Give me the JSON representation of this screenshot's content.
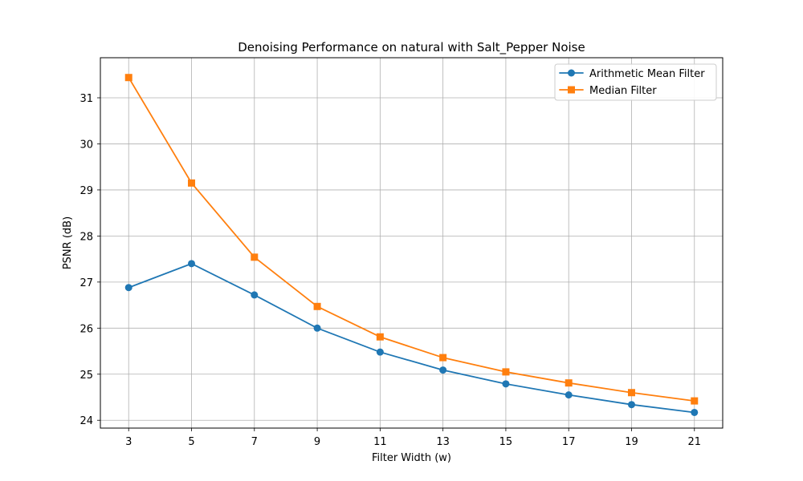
{
  "chart_data": {
    "type": "line",
    "title": "Denoising Performance on natural with Salt_Pepper Noise",
    "xlabel": "Filter Width (w)",
    "ylabel": "PSNR (dB)",
    "x": [
      3,
      5,
      7,
      9,
      11,
      13,
      15,
      17,
      19,
      21
    ],
    "xlim": [
      2.1,
      21.9
    ],
    "ylim": [
      23.83,
      31.87
    ],
    "x_ticks": [
      "3",
      "5",
      "7",
      "9",
      "11",
      "13",
      "15",
      "17",
      "19",
      "21"
    ],
    "y_ticks": [
      "24",
      "25",
      "26",
      "27",
      "28",
      "29",
      "30",
      "31"
    ],
    "grid": true,
    "legend_position": "top-right",
    "series": [
      {
        "name": "Arithmetic Mean Filter",
        "color": "#1f77b4",
        "marker": "circle",
        "values": [
          26.88,
          27.4,
          26.72,
          26.0,
          25.48,
          25.09,
          24.79,
          24.55,
          24.34,
          24.17
        ]
      },
      {
        "name": "Median Filter",
        "color": "#ff7f0e",
        "marker": "square",
        "values": [
          31.44,
          29.15,
          27.54,
          26.47,
          25.81,
          25.36,
          25.05,
          24.81,
          24.6,
          24.42
        ]
      }
    ]
  }
}
